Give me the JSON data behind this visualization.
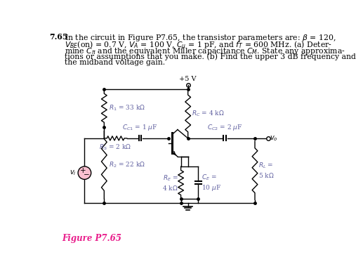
{
  "fig_label": "Figure P7.65",
  "fig_label_color": "#E91E8C",
  "background_color": "#ffffff",
  "vcc_label": "+5 V",
  "RC_label": "$R_C$ = 4 k$\\Omega$",
  "R1_label": "$R_1$ = 33 k$\\Omega$",
  "CC1_label": "$C_{C1}$ = 1 $\\mu$F",
  "RS_label": "$R_S$ = 2 k$\\Omega$",
  "CC2_label": "$C_{C2}$ = 2 $\\mu$F",
  "R2_label": "$R_2$ = 22 k$\\Omega$",
  "RE_label": "$R_E$ =\n4 k$\\Omega$",
  "CE_label": "$C_E$ =\n10 $\\mu$F",
  "RL_label": "$R_L$ =\n5 k$\\Omega$",
  "vo_label": "$v_o$",
  "vi_label": "$v_i$"
}
